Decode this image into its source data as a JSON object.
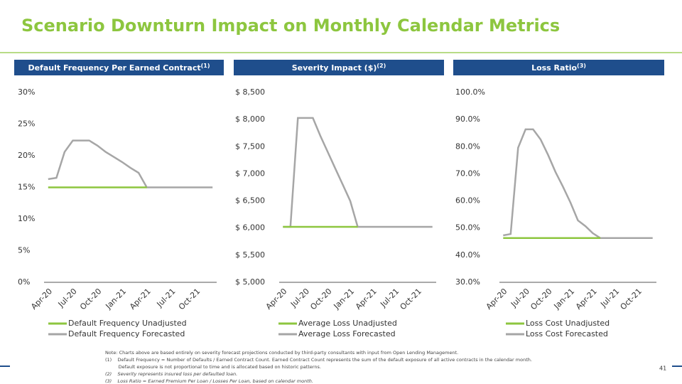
{
  "title": "Scenario Downturn Impact on Monthly Calendar Metrics",
  "page_number": "41",
  "notes": [
    {
      "text": "Note: Charts above are based entirely on severity forecast projections conducted by third-party consultants with input from Open Lending Management.",
      "italic": false
    },
    {
      "text": "(1)    Default Frequency = Number of Defaults / Earned Contract Count. Earned Contract Count represents the sum of the default exposure of all active contracts in the calendar month.",
      "italic": false
    },
    {
      "text": "         Default exposure is not proportional to time and is allocated based on historic patterns.",
      "italic": false
    },
    {
      "text": "(2)    Severity represents insured loss per defaulted loan.",
      "italic": true
    },
    {
      "text": "(3)    Loss Ratio = Earned Premium Per Loan / Losses Per Loan, based on calendar month.",
      "italic": true
    }
  ],
  "chart_data": [
    {
      "type": "line",
      "title": "Default Frequency Per Earned Contract",
      "title_superscript": "(1)",
      "categories": [
        "Apr-20",
        null,
        null,
        "Jul-20",
        null,
        null,
        "Oct-20",
        null,
        null,
        "Jan-21",
        null,
        null,
        "Apr-21",
        null,
        null,
        "Jul-21",
        null,
        null,
        "Oct-21",
        null,
        null
      ],
      "ylim": [
        0,
        30
      ],
      "yticks": [
        {
          "value": 0,
          "label": "0%"
        },
        {
          "value": 5,
          "label": "5%"
        },
        {
          "value": 10,
          "label": "10%"
        },
        {
          "value": 15,
          "label": "15%"
        },
        {
          "value": 20,
          "label": "20%"
        },
        {
          "value": 25,
          "label": "25%"
        },
        {
          "value": 30,
          "label": "30%"
        }
      ],
      "series": [
        {
          "name": "Default Frequency Unadjusted",
          "color": "#8dc63f",
          "values": [
            15,
            15,
            15,
            15,
            15,
            15,
            15,
            15,
            15,
            15,
            15,
            15,
            15,
            null,
            null,
            null,
            null,
            null,
            null,
            null,
            null
          ]
        },
        {
          "name": "Default Frequency Forecasted",
          "color": "#a6a6a6",
          "values": [
            16.3,
            16.5,
            20.6,
            22.4,
            22.4,
            22.4,
            21.6,
            20.6,
            19.8,
            19.0,
            18.1,
            17.3,
            15,
            15,
            15,
            15,
            15,
            15,
            15,
            15,
            15
          ]
        }
      ]
    },
    {
      "type": "line",
      "title": "Severity Impact ($)",
      "title_superscript": "(2)",
      "categories": [
        "Apr-20",
        null,
        null,
        "Jul-20",
        null,
        null,
        "Oct-20",
        null,
        null,
        "Jan-21",
        null,
        null,
        "Apr-21",
        null,
        null,
        "Jul-21",
        null,
        null,
        "Oct-21",
        null,
        null
      ],
      "ylim": [
        5000,
        8500
      ],
      "yticks": [
        {
          "value": 5000,
          "label": "$ 5,000"
        },
        {
          "value": 5500,
          "label": "$ 5,500"
        },
        {
          "value": 6000,
          "label": "$ 6,000"
        },
        {
          "value": 6500,
          "label": "$ 6,500"
        },
        {
          "value": 7000,
          "label": "$ 7,000"
        },
        {
          "value": 7500,
          "label": "$ 7,500"
        },
        {
          "value": 8000,
          "label": "$ 8,000"
        },
        {
          "value": 8500,
          "label": "$ 8,500"
        }
      ],
      "series": [
        {
          "name": "Average Loss Unadjusted",
          "color": "#8dc63f",
          "values": [
            6022,
            6022,
            6022,
            6022,
            6022,
            6022,
            6022,
            6022,
            6022,
            6022,
            6022,
            null,
            null,
            null,
            null,
            null,
            null,
            null,
            null,
            null,
            null
          ]
        },
        {
          "name": "Average Loss Forecasted",
          "color": "#a6a6a6",
          "values": [
            6022,
            6022,
            8030,
            8030,
            8030,
            7700,
            7400,
            7100,
            6800,
            6500,
            6022,
            6022,
            6022,
            6022,
            6022,
            6022,
            6022,
            6022,
            6022,
            6022,
            6022
          ]
        }
      ]
    },
    {
      "type": "line",
      "title": "Loss Ratio",
      "title_superscript": "(3)",
      "categories": [
        "Apr-20",
        null,
        null,
        "Jul-20",
        null,
        null,
        "Oct-20",
        null,
        null,
        "Jan-21",
        null,
        null,
        "Apr-21",
        null,
        null,
        "Jul-21",
        null,
        null,
        "Oct-21",
        null,
        null
      ],
      "ylim": [
        30,
        100
      ],
      "yticks": [
        {
          "value": 30,
          "label": "30.0%"
        },
        {
          "value": 40,
          "label": "40.0%"
        },
        {
          "value": 50,
          "label": "50.0%"
        },
        {
          "value": 60,
          "label": "60.0%"
        },
        {
          "value": 70,
          "label": "70.0%"
        },
        {
          "value": 80,
          "label": "80.0%"
        },
        {
          "value": 90,
          "label": "90.0%"
        },
        {
          "value": 100,
          "label": "100.0%"
        }
      ],
      "series": [
        {
          "name": "Loss Cost Unadjusted",
          "color": "#8dc63f",
          "values": [
            46.3,
            46.3,
            46.3,
            46.3,
            46.3,
            46.3,
            46.3,
            46.3,
            46.3,
            46.3,
            46.3,
            46.3,
            46.3,
            46.3,
            null,
            null,
            null,
            null,
            null,
            null,
            null
          ]
        },
        {
          "name": "Loss Cost Forecasted",
          "color": "#a6a6a6",
          "values": [
            47.3,
            47.8,
            79.6,
            86.4,
            86.4,
            82.7,
            77.0,
            70.7,
            65.2,
            59.4,
            52.8,
            50.7,
            48.1,
            46.3,
            46.3,
            46.3,
            46.3,
            46.3,
            46.3,
            46.3,
            46.3
          ]
        }
      ]
    }
  ]
}
